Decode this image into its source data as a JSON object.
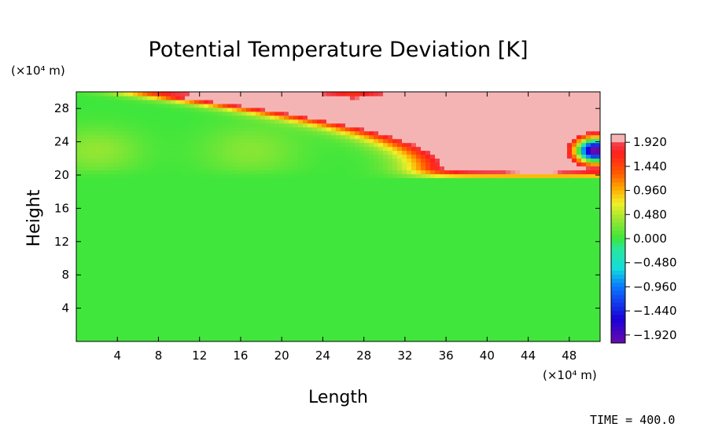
{
  "chart_data": {
    "type": "heatmap",
    "title": "Potential Temperature Deviation [K]",
    "xlabel": "Length",
    "ylabel": "Height",
    "x_unit": "(×10⁴ m)",
    "y_unit": "(×10⁴ m)",
    "xlim": [
      0,
      51
    ],
    "ylim": [
      0,
      30
    ],
    "x_ticks": [
      "4",
      "8",
      "12",
      "16",
      "20",
      "24",
      "28",
      "32",
      "36",
      "40",
      "44",
      "48"
    ],
    "y_ticks": [
      "4",
      "8",
      "12",
      "16",
      "20",
      "24",
      "28"
    ],
    "colorbar": {
      "min": -2.08,
      "max": 2.08,
      "labels": [
        "1.920",
        "1.440",
        "0.960",
        "0.480",
        "0.000",
        "−0.480",
        "−0.960",
        "−1.440",
        "−1.920"
      ],
      "label_values": [
        1.92,
        1.44,
        0.96,
        0.48,
        0.0,
        -0.48,
        -0.96,
        -1.44,
        -1.92
      ]
    },
    "field_description": "Near-zero deviation (green) everywhere below 20; above 20 a warm region grows toward the right, saturating (>1.92) from x≈31 to x≈51 at height 21-30, with a cool pocket (cyan/blue) at the right edge around height 23 and a slight negative patch near x≈27, height 29.",
    "grid": false
  },
  "annotation": {
    "time_text": "TIME = 400.0"
  },
  "colors": {
    "background": "#ffffff",
    "axes": "#000000",
    "saturated_high": "#f5b4b4",
    "saturated_low": "#7a0fa0",
    "zero_level": "#3ce63c"
  }
}
